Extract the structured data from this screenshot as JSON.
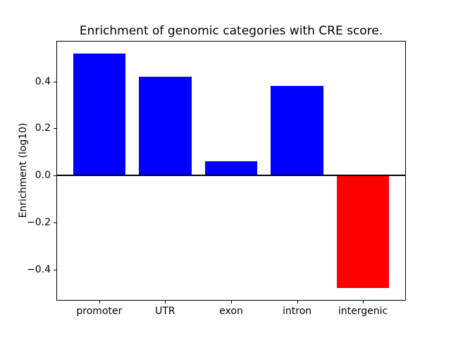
{
  "chart_data": {
    "type": "bar",
    "title": "Enrichment of genomic categories with CRE score.",
    "ylabel": "Enrichment (log10)",
    "xlabel": "",
    "categories": [
      "promoter",
      "UTR",
      "exon",
      "intron",
      "intergenic"
    ],
    "values": [
      0.52,
      0.42,
      0.06,
      0.38,
      -0.48
    ],
    "bar_colors": [
      "#0000ff",
      "#0000ff",
      "#0000ff",
      "#0000ff",
      "#ff0000"
    ],
    "positive_color": "#0000ff",
    "negative_color": "#ff0000",
    "bar_width": 0.8,
    "xlim": [
      -0.64,
      4.64
    ],
    "ylim": [
      -0.53,
      0.57
    ],
    "yticks": [
      -0.4,
      -0.2,
      0.0,
      0.2,
      0.4
    ],
    "ytick_labels": [
      "−0.4",
      "−0.2",
      "0.0",
      "0.2",
      "0.4"
    ],
    "grid": false,
    "legend": null,
    "zero_line": true,
    "background_color": "#ffffff",
    "spine_color": "#000000"
  }
}
